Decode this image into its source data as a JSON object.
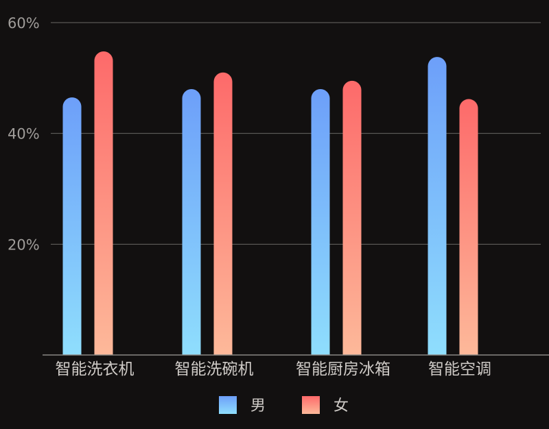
{
  "chart_data": {
    "type": "bar",
    "categories": [
      "智能洗衣机",
      "智能洗碗机",
      "智能厨房冰箱",
      "智能空调"
    ],
    "series": [
      {
        "name": "男",
        "values": [
          46.5,
          48,
          48,
          53.8
        ]
      },
      {
        "name": "女",
        "values": [
          54.8,
          51,
          49.5,
          46.2
        ]
      }
    ],
    "yticks": [
      {
        "value": 20,
        "label": "20%"
      },
      {
        "value": 40,
        "label": "40%"
      },
      {
        "value": 60,
        "label": "60%"
      }
    ],
    "ylim": [
      0,
      60
    ],
    "grid": true,
    "legend_position": "bottom-center",
    "colors": {
      "male_top": "#6d9ff9",
      "male_bottom": "#8fdefd",
      "female_top": "#fd6a6a",
      "female_bottom": "#fdb99a",
      "grid": "#6a6865",
      "axis": "#8a8784"
    }
  }
}
